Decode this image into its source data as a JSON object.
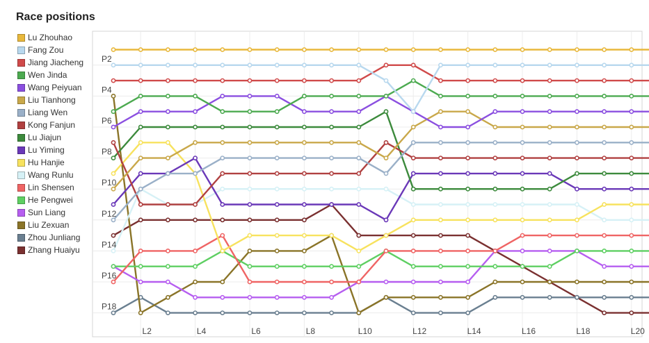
{
  "page": {
    "title": "Race positions"
  },
  "chart_data": {
    "type": "line",
    "title": "Race positions",
    "xlabel": "",
    "ylabel": "",
    "y_inverted": true,
    "ylim": [
      1,
      18
    ],
    "grid": true,
    "legend_position": "left",
    "x": [
      "L1",
      "L2",
      "L3",
      "L4",
      "L5",
      "L6",
      "L7",
      "L8",
      "L9",
      "L10",
      "L11",
      "L12",
      "L13",
      "L14",
      "L15",
      "L16",
      "L17",
      "L18",
      "L19",
      "L20",
      "L21"
    ],
    "x_tick_labels": [
      "L2",
      "L4",
      "L6",
      "L8",
      "L10",
      "L12",
      "L14",
      "L16",
      "L18",
      "L20"
    ],
    "y_tick_labels": [
      "P2",
      "P4",
      "P6",
      "P8",
      "P10",
      "P12",
      "P14",
      "P16",
      "P18"
    ],
    "series": [
      {
        "name": "Lu Zhouhao",
        "color": "#e8b83c",
        "values": [
          1,
          1,
          1,
          1,
          1,
          1,
          1,
          1,
          1,
          1,
          1,
          1,
          1,
          1,
          1,
          1,
          1,
          1,
          1,
          1,
          1
        ]
      },
      {
        "name": "Fang Zou",
        "color": "#b8d8ee",
        "values": [
          2,
          2,
          2,
          2,
          2,
          2,
          2,
          2,
          2,
          2,
          3,
          5,
          2,
          2,
          2,
          2,
          2,
          2,
          2,
          2,
          2
        ]
      },
      {
        "name": "Jiang Jiacheng",
        "color": "#d04a4a",
        "values": [
          3,
          3,
          3,
          3,
          3,
          3,
          3,
          3,
          3,
          3,
          2,
          2,
          3,
          3,
          3,
          3,
          3,
          3,
          3,
          3,
          3
        ]
      },
      {
        "name": "Wen Jinda",
        "color": "#4caa50",
        "values": [
          5,
          4,
          4,
          4,
          5,
          5,
          5,
          4,
          4,
          4,
          4,
          3,
          4,
          4,
          4,
          4,
          4,
          4,
          4,
          4,
          4
        ]
      },
      {
        "name": "Wang Peiyuan",
        "color": "#8b4fe0",
        "values": [
          6,
          5,
          5,
          5,
          4,
          4,
          4,
          5,
          5,
          5,
          4,
          5,
          6,
          6,
          5,
          5,
          5,
          5,
          5,
          5,
          5
        ]
      },
      {
        "name": "Liu Tianhong",
        "color": "#c9a84a",
        "values": [
          10,
          8,
          8,
          7,
          7,
          7,
          7,
          7,
          7,
          7,
          8,
          6,
          5,
          5,
          6,
          6,
          6,
          6,
          6,
          6,
          6
        ]
      },
      {
        "name": "Liang Wen",
        "color": "#9ab0c8",
        "values": [
          12,
          10,
          9,
          9,
          8,
          8,
          8,
          8,
          8,
          8,
          9,
          7,
          7,
          7,
          7,
          7,
          7,
          7,
          7,
          7,
          7
        ]
      },
      {
        "name": "Kong Fanjun",
        "color": "#b04040",
        "values": [
          7,
          11,
          11,
          11,
          9,
          9,
          9,
          9,
          9,
          9,
          7,
          8,
          8,
          8,
          8,
          8,
          8,
          8,
          8,
          8,
          8
        ]
      },
      {
        "name": "Lu Jiajun",
        "color": "#3c8a3c",
        "values": [
          8,
          6,
          6,
          6,
          6,
          6,
          6,
          6,
          6,
          6,
          5,
          10,
          10,
          10,
          10,
          10,
          10,
          9,
          9,
          9,
          9
        ]
      },
      {
        "name": "Lu Yiming",
        "color": "#6a38b8",
        "values": [
          11,
          9,
          9,
          8,
          11,
          11,
          11,
          11,
          11,
          11,
          12,
          9,
          9,
          9,
          9,
          9,
          9,
          10,
          10,
          10,
          10
        ]
      },
      {
        "name": "Hu Hanjie",
        "color": "#f7e25e",
        "values": [
          9,
          7,
          7,
          9,
          14,
          13,
          13,
          13,
          13,
          14,
          13,
          12,
          12,
          12,
          12,
          12,
          12,
          12,
          11,
          11,
          11
        ]
      },
      {
        "name": "Wang Runlu",
        "color": "#d6f1f6",
        "values": [
          14,
          10,
          11,
          11,
          10,
          10,
          10,
          10,
          10,
          10,
          10,
          11,
          11,
          11,
          11,
          11,
          11,
          11,
          12,
          12,
          12
        ]
      },
      {
        "name": "Lin Shensen",
        "color": "#ef6464",
        "values": [
          16,
          14,
          14,
          14,
          13,
          16,
          16,
          16,
          16,
          16,
          14,
          14,
          14,
          14,
          14,
          13,
          13,
          13,
          13,
          13,
          13
        ]
      },
      {
        "name": "He Pengwei",
        "color": "#5ecf62",
        "values": [
          15,
          15,
          15,
          15,
          14,
          15,
          15,
          15,
          15,
          15,
          14,
          15,
          15,
          15,
          15,
          15,
          15,
          14,
          14,
          14,
          14
        ]
      },
      {
        "name": "Sun Liang",
        "color": "#b65ef0",
        "values": [
          15,
          16,
          16,
          17,
          17,
          17,
          17,
          17,
          17,
          16,
          16,
          16,
          16,
          16,
          14,
          14,
          14,
          14,
          15,
          15,
          15
        ]
      },
      {
        "name": "Liu Zexuan",
        "color": "#8a7428",
        "values": [
          4,
          18,
          17,
          16,
          16,
          14,
          14,
          14,
          13,
          18,
          17,
          17,
          17,
          17,
          16,
          16,
          16,
          16,
          16,
          16,
          16
        ]
      },
      {
        "name": "Zhou Junliang",
        "color": "#6a7f90",
        "values": [
          18,
          17,
          18,
          18,
          18,
          18,
          18,
          18,
          18,
          18,
          17,
          18,
          18,
          18,
          17,
          17,
          17,
          17,
          17,
          17,
          17
        ]
      },
      {
        "name": "Zhang Huaiyu",
        "color": "#7a3030",
        "values": [
          13,
          12,
          12,
          12,
          12,
          12,
          12,
          12,
          11,
          13,
          13,
          13,
          13,
          13,
          14,
          15,
          16,
          17,
          18,
          18,
          18
        ]
      }
    ]
  }
}
